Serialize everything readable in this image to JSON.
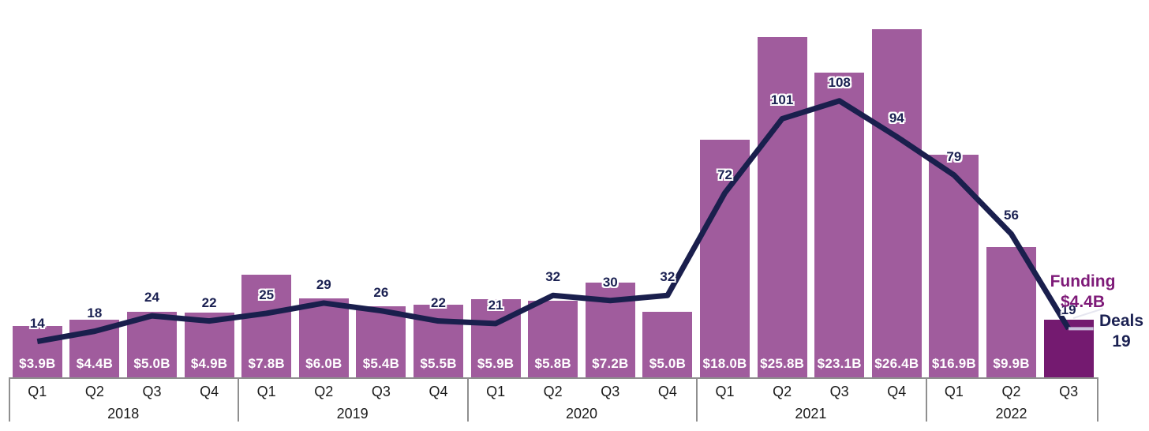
{
  "chart_data": {
    "type": "bar+line",
    "title": "",
    "x_groups": [
      {
        "year": "2018",
        "quarters": [
          "Q1",
          "Q2",
          "Q3",
          "Q4"
        ]
      },
      {
        "year": "2019",
        "quarters": [
          "Q1",
          "Q2",
          "Q3",
          "Q4"
        ]
      },
      {
        "year": "2020",
        "quarters": [
          "Q1",
          "Q2",
          "Q3",
          "Q4"
        ]
      },
      {
        "year": "2021",
        "quarters": [
          "Q1",
          "Q2",
          "Q3",
          "Q4"
        ]
      },
      {
        "year": "2022",
        "quarters": [
          "Q1",
          "Q2",
          "Q3"
        ]
      }
    ],
    "series": [
      {
        "name": "Funding",
        "type": "bar",
        "unit": "$B",
        "values": [
          3.9,
          4.4,
          5.0,
          4.9,
          7.8,
          6.0,
          5.4,
          5.5,
          5.9,
          5.8,
          7.2,
          5.0,
          18.0,
          25.8,
          23.1,
          26.4,
          16.9,
          9.9,
          4.4
        ],
        "bar_labels": [
          "$3.9B",
          "$4.4B",
          "$5.0B",
          "$4.9B",
          "$7.8B",
          "$6.0B",
          "$5.4B",
          "$5.5B",
          "$5.9B",
          "$5.8B",
          "$7.2B",
          "$5.0B",
          "$18.0B",
          "$25.8B",
          "$23.1B",
          "$26.4B",
          "$16.9B",
          "$9.9B",
          ""
        ],
        "highlight_index": 18
      },
      {
        "name": "Deals",
        "type": "line",
        "values": [
          14,
          18,
          24,
          22,
          25,
          29,
          26,
          22,
          21,
          32,
          30,
          32,
          72,
          101,
          108,
          94,
          79,
          56,
          19
        ]
      }
    ],
    "annotations": {
      "funding_label": "Funding",
      "funding_value": "$4.4B",
      "deals_label": "Deals",
      "deals_value": "19"
    },
    "colors": {
      "bar": "#a05c9d",
      "bar_highlight": "#741a70",
      "line": "#1a1f4d",
      "deal_label_text": "#1b2152",
      "bar_value_text": "#ffffff",
      "funding_annotation_text": "#7e1a78",
      "deals_annotation_text": "#1b2152",
      "axis_line": "#8f8f8f",
      "axis_text": "#1a1a1a",
      "line_end_tick": "#ccc0dc",
      "leader_line": "#e6e6f0"
    },
    "layout_hints": {
      "legend_position": "right-annotations",
      "grid": false,
      "y_axis_visible": false
    }
  }
}
